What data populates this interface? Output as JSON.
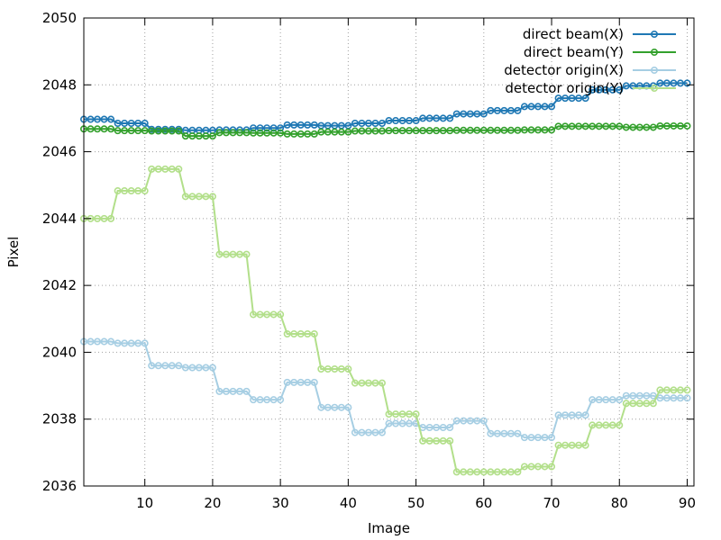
{
  "chart_data": {
    "type": "line",
    "title": "",
    "xlabel": "Image",
    "ylabel": "Pixel",
    "xlim": [
      1,
      91
    ],
    "ylim": [
      2036,
      2050
    ],
    "xticks": [
      10,
      20,
      30,
      40,
      50,
      60,
      70,
      80,
      90
    ],
    "yticks": [
      2036,
      2038,
      2040,
      2042,
      2044,
      2046,
      2048,
      2050
    ],
    "grid": true,
    "legend_position": "top-right",
    "series": [
      {
        "name": "direct beam(X)",
        "color": "#1f78b4",
        "segments": [
          [
            1,
            5,
            2046.97
          ],
          [
            6,
            10,
            2046.85
          ],
          [
            11,
            15,
            2046.67
          ],
          [
            16,
            20,
            2046.64
          ],
          [
            21,
            25,
            2046.65
          ],
          [
            26,
            30,
            2046.71
          ],
          [
            31,
            35,
            2046.8
          ],
          [
            36,
            40,
            2046.78
          ],
          [
            41,
            45,
            2046.85
          ],
          [
            46,
            50,
            2046.93
          ],
          [
            51,
            55,
            2047.0
          ],
          [
            56,
            60,
            2047.13
          ],
          [
            61,
            65,
            2047.23
          ],
          [
            66,
            70,
            2047.35
          ],
          [
            71,
            75,
            2047.6
          ],
          [
            76,
            80,
            2047.85
          ],
          [
            81,
            85,
            2047.97
          ],
          [
            86,
            90,
            2048.05
          ]
        ]
      },
      {
        "name": "direct beam(Y)",
        "color": "#33a02c",
        "segments": [
          [
            1,
            5,
            2046.68
          ],
          [
            6,
            10,
            2046.63
          ],
          [
            11,
            15,
            2046.62
          ],
          [
            16,
            20,
            2046.47
          ],
          [
            21,
            25,
            2046.57
          ],
          [
            26,
            30,
            2046.56
          ],
          [
            31,
            35,
            2046.53
          ],
          [
            36,
            40,
            2046.59
          ],
          [
            41,
            45,
            2046.62
          ],
          [
            46,
            50,
            2046.63
          ],
          [
            51,
            55,
            2046.63
          ],
          [
            56,
            60,
            2046.64
          ],
          [
            61,
            65,
            2046.64
          ],
          [
            66,
            70,
            2046.65
          ],
          [
            71,
            75,
            2046.76
          ],
          [
            76,
            80,
            2046.76
          ],
          [
            81,
            85,
            2046.73
          ],
          [
            86,
            90,
            2046.77
          ]
        ]
      },
      {
        "name": "detector origin(X)",
        "color": "#a6cee3",
        "segments": [
          [
            1,
            5,
            2040.32
          ],
          [
            6,
            10,
            2040.27
          ],
          [
            11,
            15,
            2039.6
          ],
          [
            16,
            20,
            2039.54
          ],
          [
            21,
            25,
            2038.83
          ],
          [
            26,
            30,
            2038.58
          ],
          [
            31,
            35,
            2039.1
          ],
          [
            36,
            40,
            2038.35
          ],
          [
            41,
            45,
            2037.6
          ],
          [
            46,
            50,
            2037.87
          ],
          [
            51,
            55,
            2037.75
          ],
          [
            56,
            60,
            2037.95
          ],
          [
            61,
            65,
            2037.57
          ],
          [
            66,
            70,
            2037.45
          ],
          [
            71,
            75,
            2038.12
          ],
          [
            76,
            80,
            2038.58
          ],
          [
            81,
            85,
            2038.7
          ],
          [
            86,
            90,
            2038.63
          ]
        ]
      },
      {
        "name": "detector origin(Y)",
        "color": "#b2df8a",
        "segments": [
          [
            1,
            5,
            2044.0
          ],
          [
            6,
            10,
            2044.83
          ],
          [
            11,
            15,
            2045.48
          ],
          [
            16,
            20,
            2044.66
          ],
          [
            21,
            25,
            2042.93
          ],
          [
            26,
            30,
            2041.13
          ],
          [
            31,
            35,
            2040.55
          ],
          [
            36,
            40,
            2039.5
          ],
          [
            41,
            45,
            2039.08
          ],
          [
            46,
            50,
            2038.15
          ],
          [
            51,
            55,
            2037.35
          ],
          [
            56,
            60,
            2036.42
          ],
          [
            61,
            65,
            2036.42
          ],
          [
            66,
            70,
            2036.58
          ],
          [
            71,
            75,
            2037.22
          ],
          [
            76,
            80,
            2037.82
          ],
          [
            81,
            85,
            2038.47
          ],
          [
            86,
            90,
            2038.87
          ]
        ]
      }
    ]
  }
}
